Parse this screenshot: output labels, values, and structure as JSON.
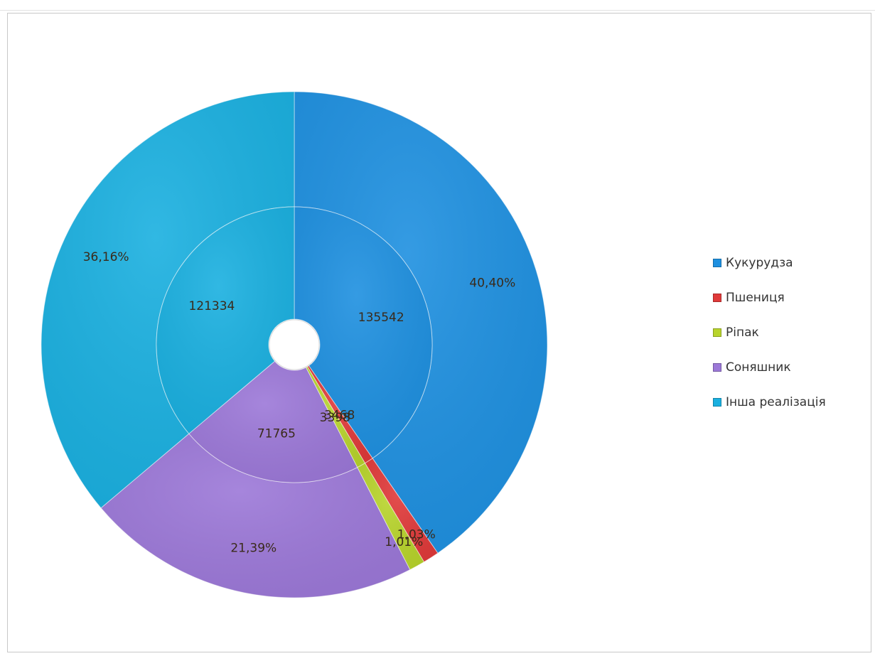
{
  "chart_data": {
    "type": "pie",
    "subtype": "doughnut",
    "categories": [
      "Кукурудза",
      "Пшениця",
      "Ріпак",
      "Соняшник",
      "Інша реалізація"
    ],
    "colors": [
      "#1e90e0",
      "#e03a3a",
      "#b8d42c",
      "#9c78d8",
      "#1ab0e0"
    ],
    "series": [
      {
        "ring": "inner",
        "values": [
          135542,
          3468,
          3398,
          71765,
          121334
        ],
        "labels": [
          "135542",
          "3468",
          "3398",
          "71765",
          "121334"
        ]
      },
      {
        "ring": "outer",
        "values": [
          40.4,
          1.03,
          1.01,
          21.39,
          36.16
        ],
        "labels": [
          "40,40%",
          "1,03%",
          "1,01%",
          "21,39%",
          "36,16%"
        ]
      }
    ],
    "legend": {
      "position": "right",
      "entries": [
        "Кукурудза",
        "Пшениця",
        "Ріпак",
        "Соняшник",
        "Інша реалізація"
      ]
    }
  }
}
